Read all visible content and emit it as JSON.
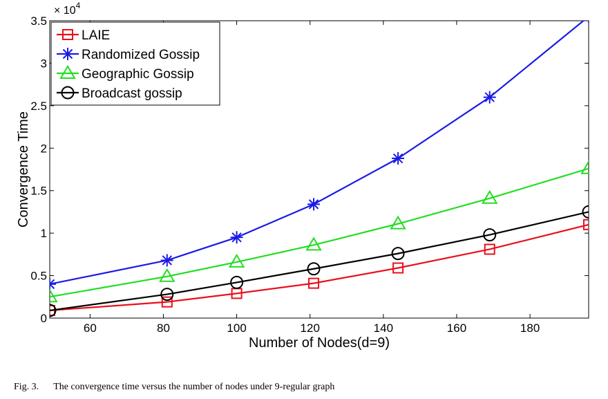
{
  "chart_data": {
    "type": "line",
    "xlabel": "Number of Nodes(d=9)",
    "ylabel": "Convergence Time",
    "y_exponent_label": "× 10",
    "y_exponent": "4",
    "xlim": [
      49,
      196
    ],
    "ylim": [
      0,
      35000
    ],
    "x_ticks": [
      60,
      80,
      100,
      120,
      140,
      160,
      180
    ],
    "y_ticks": [
      0,
      5000,
      10000,
      15000,
      20000,
      25000,
      30000,
      35000
    ],
    "y_tick_labels": [
      "0",
      "0.5",
      "1",
      "1.5",
      "2",
      "2.5",
      "3",
      "3.5"
    ],
    "x": [
      49,
      81,
      100,
      121,
      144,
      169,
      196
    ],
    "series": [
      {
        "name": "LAIE",
        "color": "#e8101c",
        "marker": "square",
        "values": [
          900,
          1900,
          2900,
          4100,
          5900,
          8100,
          11000
        ]
      },
      {
        "name": "Randomized Gossip",
        "color": "#1a1ae6",
        "marker": "asterisk",
        "values": [
          4000,
          6800,
          9500,
          13400,
          18800,
          26000,
          35500
        ]
      },
      {
        "name": "Geographic Gossip",
        "color": "#22dd22",
        "marker": "triangle",
        "values": [
          2500,
          4900,
          6600,
          8600,
          11100,
          14100,
          17600
        ]
      },
      {
        "name": "Broadcast gossip",
        "color": "#000000",
        "marker": "circle",
        "values": [
          900,
          2800,
          4200,
          5800,
          7600,
          9800,
          12500
        ]
      }
    ],
    "legend_position": "top-left",
    "grid": false
  },
  "caption": {
    "label": "Fig. 3.",
    "text": "The convergence time versus the number of nodes under 9-regular graph"
  }
}
